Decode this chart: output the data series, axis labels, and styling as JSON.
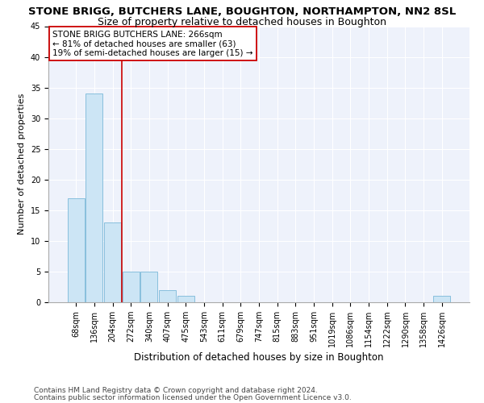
{
  "title": "STONE BRIGG, BUTCHERS LANE, BOUGHTON, NORTHAMPTON, NN2 8SL",
  "subtitle": "Size of property relative to detached houses in Boughton",
  "xlabel": "Distribution of detached houses by size in Boughton",
  "ylabel": "Number of detached properties",
  "bar_values": [
    17,
    34,
    13,
    5,
    5,
    2,
    1,
    0,
    0,
    0,
    0,
    0,
    0,
    0,
    0,
    0,
    0,
    0,
    0,
    0,
    1
  ],
  "bar_labels": [
    "68sqm",
    "136sqm",
    "204sqm",
    "272sqm",
    "340sqm",
    "407sqm",
    "475sqm",
    "543sqm",
    "611sqm",
    "679sqm",
    "747sqm",
    "815sqm",
    "883sqm",
    "951sqm",
    "1019sqm",
    "1086sqm",
    "1154sqm",
    "1222sqm",
    "1290sqm",
    "1358sqm",
    "1426sqm"
  ],
  "bar_color": "#cce5f5",
  "bar_edge_color": "#7ab8d8",
  "red_line_color": "#cc0000",
  "red_line_x": 2.5,
  "annotation_text": "STONE BRIGG BUTCHERS LANE: 266sqm\n← 81% of detached houses are smaller (63)\n19% of semi-detached houses are larger (15) →",
  "annotation_box_color": "#ffffff",
  "annotation_box_edge": "#cc0000",
  "ylim": [
    0,
    45
  ],
  "yticks": [
    0,
    5,
    10,
    15,
    20,
    25,
    30,
    35,
    40,
    45
  ],
  "footer1": "Contains HM Land Registry data © Crown copyright and database right 2024.",
  "footer2": "Contains public sector information licensed under the Open Government Licence v3.0.",
  "bg_color": "#eef2fb",
  "title_fontsize": 9.5,
  "subtitle_fontsize": 9,
  "xlabel_fontsize": 8.5,
  "ylabel_fontsize": 8,
  "tick_fontsize": 7,
  "annotation_fontsize": 7.5,
  "footer_fontsize": 6.5
}
